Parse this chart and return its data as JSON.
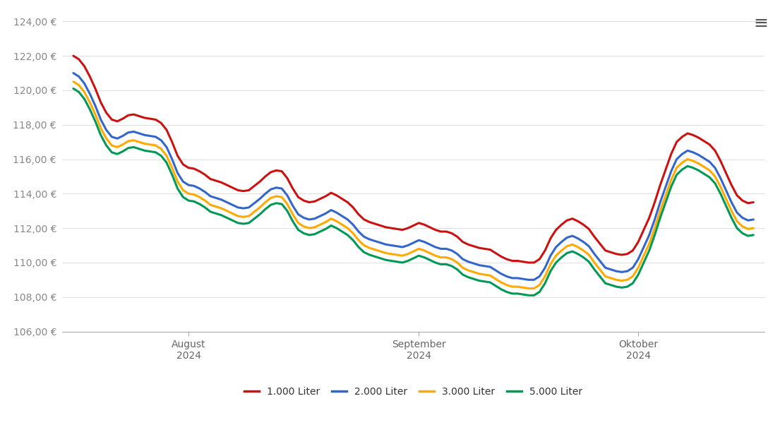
{
  "background_color": "#ffffff",
  "grid_color": "#dddddd",
  "line_colors": [
    "#cc1111",
    "#3366cc",
    "#ffaa00",
    "#009955"
  ],
  "line_labels": [
    "1.000 Liter",
    "2.000 Liter",
    "3.000 Liter",
    "5.000 Liter"
  ],
  "line_width": 2.2,
  "ylim": [
    106.0,
    124.5
  ],
  "yticks": [
    106,
    108,
    110,
    112,
    114,
    116,
    118,
    120,
    122,
    124
  ],
  "x_tick_positions": [
    21,
    63,
    103
  ],
  "x_tick_labels": [
    "August\n2024",
    "September\n2024",
    "Oktober\n2024"
  ],
  "n_points": 125,
  "series_1000": [
    122.0,
    121.8,
    121.4,
    120.8,
    120.1,
    119.3,
    118.7,
    118.3,
    118.2,
    118.35,
    118.55,
    118.6,
    118.5,
    118.4,
    118.35,
    118.3,
    118.1,
    117.7,
    117.0,
    116.2,
    115.7,
    115.5,
    115.45,
    115.3,
    115.1,
    114.85,
    114.75,
    114.65,
    114.5,
    114.35,
    114.2,
    114.15,
    114.2,
    114.45,
    114.7,
    115.0,
    115.25,
    115.35,
    115.3,
    114.9,
    114.3,
    113.8,
    113.6,
    113.5,
    113.55,
    113.7,
    113.85,
    114.05,
    113.9,
    113.7,
    113.5,
    113.2,
    112.8,
    112.5,
    112.35,
    112.25,
    112.15,
    112.05,
    112.0,
    111.95,
    111.9,
    112.0,
    112.15,
    112.3,
    112.2,
    112.05,
    111.9,
    111.8,
    111.8,
    111.7,
    111.5,
    111.2,
    111.05,
    110.95,
    110.85,
    110.8,
    110.75,
    110.55,
    110.35,
    110.2,
    110.1,
    110.1,
    110.05,
    110.0,
    110.0,
    110.2,
    110.7,
    111.4,
    111.9,
    112.2,
    112.45,
    112.55,
    112.4,
    112.2,
    111.95,
    111.5,
    111.1,
    110.7,
    110.6,
    110.5,
    110.45,
    110.5,
    110.7,
    111.2,
    111.9,
    112.6,
    113.5,
    114.5,
    115.4,
    116.3,
    117.0,
    117.3,
    117.5,
    117.4,
    117.25,
    117.05,
    116.85,
    116.5,
    115.9,
    115.2,
    114.5,
    113.9,
    113.6,
    113.45,
    113.5
  ],
  "series_2000": [
    121.0,
    120.8,
    120.4,
    119.8,
    119.1,
    118.3,
    117.7,
    117.3,
    117.2,
    117.35,
    117.55,
    117.6,
    117.5,
    117.4,
    117.35,
    117.3,
    117.1,
    116.7,
    116.0,
    115.2,
    114.7,
    114.5,
    114.45,
    114.3,
    114.1,
    113.85,
    113.75,
    113.65,
    113.5,
    113.35,
    113.2,
    113.15,
    113.2,
    113.45,
    113.7,
    114.0,
    114.25,
    114.35,
    114.3,
    113.9,
    113.3,
    112.8,
    112.6,
    112.5,
    112.55,
    112.7,
    112.85,
    113.05,
    112.9,
    112.7,
    112.5,
    112.2,
    111.8,
    111.5,
    111.35,
    111.25,
    111.15,
    111.05,
    111.0,
    110.95,
    110.9,
    111.0,
    111.15,
    111.3,
    111.2,
    111.05,
    110.9,
    110.8,
    110.8,
    110.7,
    110.5,
    110.2,
    110.05,
    109.95,
    109.85,
    109.8,
    109.75,
    109.55,
    109.35,
    109.2,
    109.1,
    109.1,
    109.05,
    109.0,
    109.0,
    109.2,
    109.7,
    110.4,
    110.9,
    111.2,
    111.45,
    111.55,
    111.4,
    111.2,
    110.95,
    110.5,
    110.1,
    109.7,
    109.6,
    109.5,
    109.45,
    109.5,
    109.7,
    110.2,
    110.9,
    111.6,
    112.5,
    113.5,
    114.4,
    115.3,
    116.0,
    116.3,
    116.5,
    116.4,
    116.25,
    116.05,
    115.85,
    115.5,
    114.9,
    114.2,
    113.5,
    112.9,
    112.6,
    112.45,
    112.5
  ],
  "series_3000": [
    120.5,
    120.3,
    119.9,
    119.3,
    118.6,
    117.8,
    117.2,
    116.8,
    116.7,
    116.85,
    117.05,
    117.1,
    117.0,
    116.9,
    116.85,
    116.8,
    116.6,
    116.2,
    115.5,
    114.7,
    114.2,
    114.0,
    113.95,
    113.8,
    113.6,
    113.35,
    113.25,
    113.15,
    113.0,
    112.85,
    112.7,
    112.65,
    112.7,
    112.95,
    113.2,
    113.5,
    113.75,
    113.85,
    113.8,
    113.4,
    112.8,
    112.3,
    112.1,
    112.0,
    112.05,
    112.2,
    112.35,
    112.55,
    112.4,
    112.2,
    112.0,
    111.7,
    111.3,
    111.0,
    110.85,
    110.75,
    110.65,
    110.55,
    110.5,
    110.45,
    110.4,
    110.5,
    110.65,
    110.8,
    110.7,
    110.55,
    110.4,
    110.3,
    110.3,
    110.2,
    110.0,
    109.7,
    109.55,
    109.45,
    109.35,
    109.3,
    109.25,
    109.05,
    108.85,
    108.7,
    108.6,
    108.6,
    108.55,
    108.5,
    108.5,
    108.7,
    109.2,
    109.9,
    110.4,
    110.7,
    110.95,
    111.05,
    110.9,
    110.7,
    110.45,
    110.0,
    109.6,
    109.2,
    109.1,
    109.0,
    108.95,
    109.0,
    109.2,
    109.7,
    110.4,
    111.1,
    112.0,
    113.0,
    113.9,
    114.8,
    115.5,
    115.8,
    116.0,
    115.9,
    115.75,
    115.55,
    115.35,
    115.0,
    114.4,
    113.7,
    113.0,
    112.4,
    112.1,
    111.95,
    112.0
  ],
  "series_5000": [
    120.1,
    119.9,
    119.5,
    118.9,
    118.2,
    117.4,
    116.8,
    116.4,
    116.3,
    116.45,
    116.65,
    116.7,
    116.6,
    116.5,
    116.45,
    116.4,
    116.2,
    115.8,
    115.1,
    114.3,
    113.8,
    113.6,
    113.55,
    113.4,
    113.2,
    112.95,
    112.85,
    112.75,
    112.6,
    112.45,
    112.3,
    112.25,
    112.3,
    112.55,
    112.8,
    113.1,
    113.35,
    113.45,
    113.4,
    113.0,
    112.4,
    111.9,
    111.7,
    111.6,
    111.65,
    111.8,
    111.95,
    112.15,
    112.0,
    111.8,
    111.6,
    111.3,
    110.9,
    110.6,
    110.45,
    110.35,
    110.25,
    110.15,
    110.1,
    110.05,
    110.0,
    110.1,
    110.25,
    110.4,
    110.3,
    110.15,
    110.0,
    109.9,
    109.9,
    109.8,
    109.6,
    109.3,
    109.15,
    109.05,
    108.95,
    108.9,
    108.85,
    108.65,
    108.45,
    108.3,
    108.2,
    108.2,
    108.15,
    108.1,
    108.1,
    108.3,
    108.8,
    109.5,
    110.0,
    110.3,
    110.55,
    110.65,
    110.5,
    110.3,
    110.05,
    109.6,
    109.2,
    108.8,
    108.7,
    108.6,
    108.55,
    108.6,
    108.8,
    109.3,
    110.0,
    110.7,
    111.6,
    112.6,
    113.5,
    114.4,
    115.1,
    115.4,
    115.6,
    115.5,
    115.35,
    115.15,
    114.95,
    114.6,
    114.0,
    113.3,
    112.6,
    112.0,
    111.7,
    111.55,
    111.6
  ]
}
